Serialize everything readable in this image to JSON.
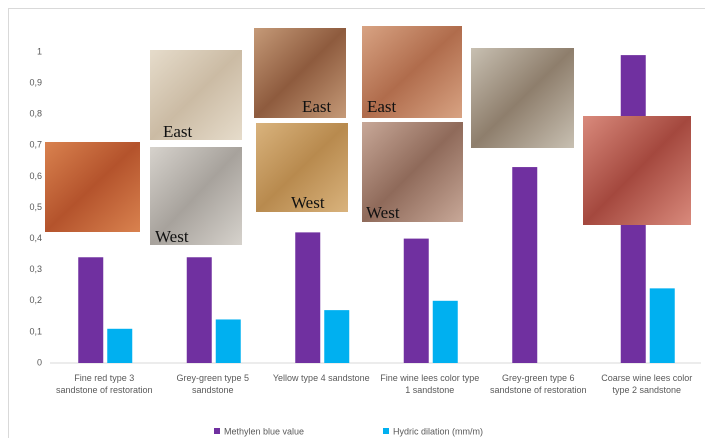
{
  "chart_data": {
    "type": "bar",
    "categories": [
      "Fine red type 3 sandstone of restoration",
      "Grey-green type 5 sandstone",
      "Yellow type 4 sandstone",
      "Fine wine lees color type 1 sandstone",
      "Grey-green type 6 sandstone of restoration",
      "Coarse wine lees color type 2 sandstone"
    ],
    "series": [
      {
        "name": "Methylen blue value",
        "color": "#7030a0",
        "values": [
          0.34,
          0.34,
          0.42,
          0.4,
          0.63,
          0.99
        ]
      },
      {
        "name": "Hydric dilation (mm/m)",
        "color": "#00b0f0",
        "values": [
          0.11,
          0.14,
          0.17,
          0.2,
          null,
          0.24
        ]
      }
    ],
    "ylim": [
      0,
      1
    ],
    "yticks": [
      0,
      {
        "value": 0.1,
        "label": "0,1"
      },
      {
        "value": 0.2,
        "label": "0,2"
      },
      {
        "value": 0.3,
        "label": "0,3"
      },
      {
        "value": 0.4,
        "label": "0,4"
      },
      {
        "value": 0.5,
        "label": "0,5"
      },
      {
        "value": 0.6,
        "label": "0,6"
      },
      {
        "value": 0.7,
        "label": "0,7"
      },
      {
        "value": 0.8,
        "label": "0,8"
      },
      {
        "value": 0.9,
        "label": "0,9"
      },
      1
    ],
    "grid": false,
    "legend": "bottom",
    "annotations": [
      "East",
      "West",
      "East",
      "West",
      "East",
      "West"
    ]
  }
}
